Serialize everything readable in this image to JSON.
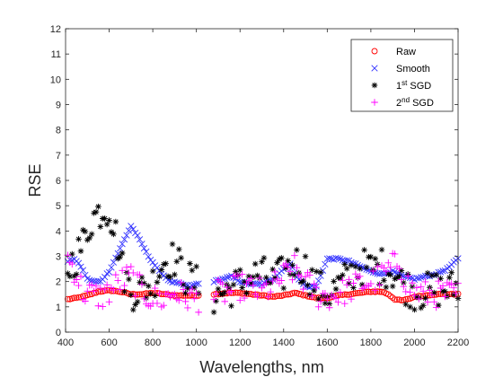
{
  "chart_data": {
    "type": "scatter",
    "title": "",
    "xlabel": "Wavelengths, nm",
    "ylabel": "RSE",
    "xlim": [
      400,
      2200
    ],
    "ylim": [
      0,
      12
    ],
    "xticks": [
      400,
      600,
      800,
      1000,
      1200,
      1400,
      1600,
      1800,
      2000,
      2200
    ],
    "yticks": [
      0,
      1,
      2,
      3,
      4,
      5,
      6,
      7,
      8,
      9,
      10,
      11,
      12
    ],
    "grid": false,
    "legend_position": "top-right",
    "x_gap": [
      1010,
      1080
    ],
    "series": [
      {
        "name": "Raw",
        "marker": "circle",
        "color": "#ff0000",
        "profile": [
          [
            410,
            1.3
          ],
          [
            450,
            1.35
          ],
          [
            500,
            1.45
          ],
          [
            550,
            1.6
          ],
          [
            600,
            1.65
          ],
          [
            650,
            1.6
          ],
          [
            700,
            1.5
          ],
          [
            750,
            1.5
          ],
          [
            800,
            1.55
          ],
          [
            850,
            1.5
          ],
          [
            900,
            1.45
          ],
          [
            950,
            1.45
          ],
          [
            1000,
            1.45
          ],
          [
            1080,
            1.5
          ],
          [
            1150,
            1.55
          ],
          [
            1200,
            1.55
          ],
          [
            1250,
            1.5
          ],
          [
            1300,
            1.45
          ],
          [
            1350,
            1.4
          ],
          [
            1400,
            1.45
          ],
          [
            1450,
            1.55
          ],
          [
            1500,
            1.45
          ],
          [
            1550,
            1.35
          ],
          [
            1600,
            1.35
          ],
          [
            1650,
            1.45
          ],
          [
            1700,
            1.5
          ],
          [
            1750,
            1.55
          ],
          [
            1800,
            1.6
          ],
          [
            1850,
            1.6
          ],
          [
            1880,
            1.5
          ],
          [
            1910,
            1.3
          ],
          [
            1940,
            1.25
          ],
          [
            1970,
            1.3
          ],
          [
            2000,
            1.4
          ],
          [
            2050,
            1.45
          ],
          [
            2100,
            1.5
          ],
          [
            2150,
            1.5
          ],
          [
            2200,
            1.5
          ]
        ]
      },
      {
        "name": "Smooth",
        "marker": "x",
        "color": "#3333ff",
        "profile": [
          [
            410,
            2.8
          ],
          [
            440,
            2.9
          ],
          [
            470,
            2.6
          ],
          [
            500,
            2.1
          ],
          [
            530,
            2.0
          ],
          [
            560,
            2.0
          ],
          [
            600,
            2.4
          ],
          [
            650,
            3.3
          ],
          [
            700,
            4.2
          ],
          [
            730,
            3.8
          ],
          [
            780,
            3.0
          ],
          [
            830,
            2.4
          ],
          [
            880,
            2.0
          ],
          [
            930,
            1.9
          ],
          [
            970,
            1.8
          ],
          [
            1000,
            1.9
          ],
          [
            1080,
            2.0
          ],
          [
            1120,
            2.1
          ],
          [
            1160,
            2.2
          ],
          [
            1200,
            2.0
          ],
          [
            1250,
            1.9
          ],
          [
            1300,
            1.9
          ],
          [
            1350,
            2.1
          ],
          [
            1400,
            2.5
          ],
          [
            1430,
            2.7
          ],
          [
            1460,
            2.2
          ],
          [
            1500,
            1.8
          ],
          [
            1550,
            1.8
          ],
          [
            1600,
            2.9
          ],
          [
            1650,
            2.9
          ],
          [
            1700,
            2.8
          ],
          [
            1750,
            2.6
          ],
          [
            1800,
            2.4
          ],
          [
            1850,
            2.3
          ],
          [
            1900,
            2.4
          ],
          [
            1950,
            2.2
          ],
          [
            2000,
            2.1
          ],
          [
            2050,
            2.2
          ],
          [
            2100,
            2.3
          ],
          [
            2150,
            2.5
          ],
          [
            2200,
            2.9
          ]
        ]
      },
      {
        "name": "1st SGD",
        "marker": "asterisk",
        "color": "#000000",
        "profile": [
          [
            410,
            2.5
          ],
          [
            450,
            3.0
          ],
          [
            480,
            3.5
          ],
          [
            520,
            4.5
          ],
          [
            560,
            4.8
          ],
          [
            600,
            4.9
          ],
          [
            640,
            3.5
          ],
          [
            660,
            2.5
          ],
          [
            700,
            1.6
          ],
          [
            760,
            1.7
          ],
          [
            800,
            2.0
          ],
          [
            850,
            2.8
          ],
          [
            900,
            2.9
          ],
          [
            950,
            2.2
          ],
          [
            1000,
            1.9
          ],
          [
            1080,
            1.4
          ],
          [
            1150,
            1.7
          ],
          [
            1200,
            1.9
          ],
          [
            1250,
            2.2
          ],
          [
            1300,
            2.3
          ],
          [
            1350,
            2.0
          ],
          [
            1400,
            2.3
          ],
          [
            1450,
            2.8
          ],
          [
            1500,
            2.5
          ],
          [
            1550,
            1.8
          ],
          [
            1600,
            1.5
          ],
          [
            1650,
            1.8
          ],
          [
            1700,
            2.2
          ],
          [
            1750,
            2.6
          ],
          [
            1800,
            2.5
          ],
          [
            1850,
            2.6
          ],
          [
            1900,
            2.4
          ],
          [
            1950,
            1.9
          ],
          [
            2000,
            1.6
          ],
          [
            2050,
            1.6
          ],
          [
            2100,
            1.7
          ],
          [
            2150,
            1.7
          ],
          [
            2200,
            1.8
          ]
        ]
      },
      {
        "name": "2nd SGD",
        "marker": "plus",
        "color": "#ff00ff",
        "profile": [
          [
            410,
            2.9
          ],
          [
            440,
            2.5
          ],
          [
            480,
            1.6
          ],
          [
            520,
            1.5
          ],
          [
            560,
            1.4
          ],
          [
            600,
            1.6
          ],
          [
            650,
            2.0
          ],
          [
            700,
            2.2
          ],
          [
            750,
            1.6
          ],
          [
            800,
            1.3
          ],
          [
            850,
            1.3
          ],
          [
            900,
            1.6
          ],
          [
            950,
            1.4
          ],
          [
            1000,
            1.3
          ],
          [
            1080,
            1.5
          ],
          [
            1150,
            1.6
          ],
          [
            1200,
            1.8
          ],
          [
            1250,
            1.7
          ],
          [
            1300,
            1.6
          ],
          [
            1350,
            1.8
          ],
          [
            1400,
            2.2
          ],
          [
            1450,
            2.5
          ],
          [
            1500,
            2.0
          ],
          [
            1550,
            1.5
          ],
          [
            1600,
            1.4
          ],
          [
            1650,
            1.5
          ],
          [
            1700,
            1.7
          ],
          [
            1750,
            1.9
          ],
          [
            1800,
            2.0
          ],
          [
            1850,
            2.2
          ],
          [
            1900,
            2.6
          ],
          [
            1930,
            2.8
          ],
          [
            1960,
            2.0
          ],
          [
            2000,
            1.6
          ],
          [
            2050,
            1.5
          ],
          [
            2100,
            1.5
          ],
          [
            2150,
            1.5
          ],
          [
            2200,
            1.5
          ]
        ]
      }
    ]
  }
}
